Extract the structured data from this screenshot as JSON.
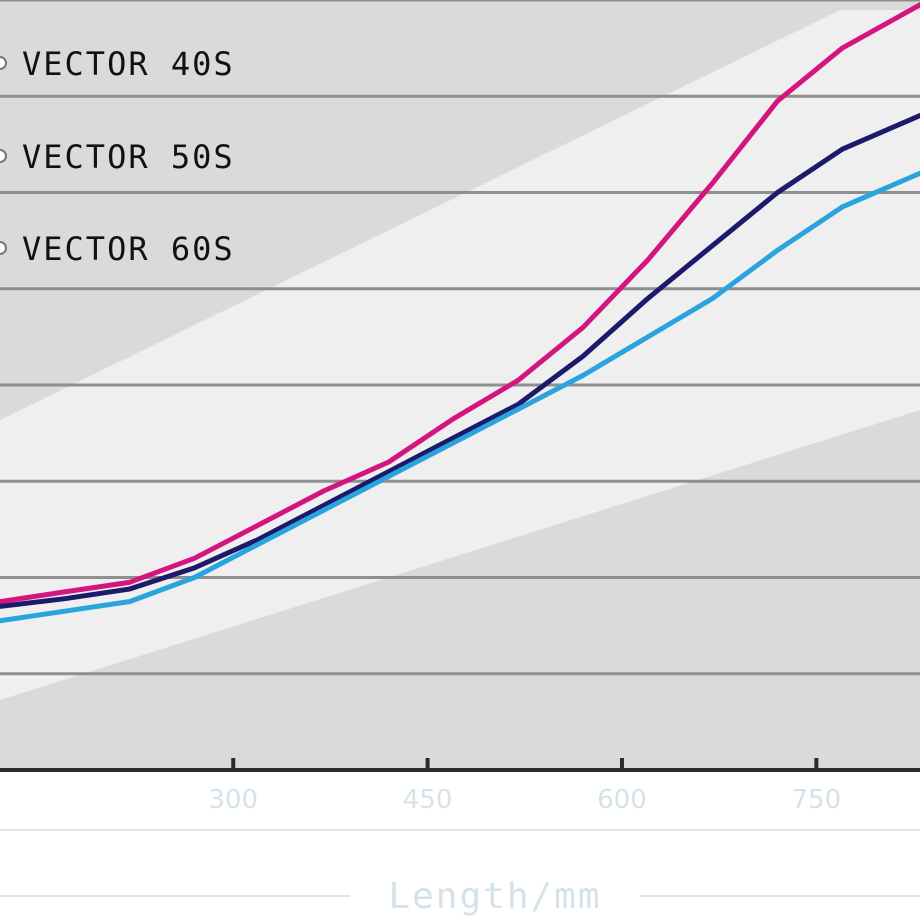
{
  "chart_data": {
    "type": "line",
    "title": "",
    "xlabel": "Length/mm",
    "ylabel": "",
    "xlim": [
      120,
      830
    ],
    "ylim": [
      0,
      8
    ],
    "x_ticks": [
      300,
      450,
      600,
      750
    ],
    "x_tick_labels": [
      "300",
      "450",
      "600",
      "750"
    ],
    "grid": true,
    "legend_placement": "top-left",
    "series": [
      {
        "name": "VECTOR 40S",
        "color": "#d4157f",
        "x": [
          120,
          170,
          220,
          270,
          320,
          370,
          420,
          470,
          520,
          570,
          620,
          670,
          720,
          770,
          830
        ],
        "y": [
          1.75,
          1.85,
          1.95,
          2.2,
          2.55,
          2.9,
          3.2,
          3.65,
          4.05,
          4.6,
          5.3,
          6.1,
          6.95,
          7.5,
          7.95
        ]
      },
      {
        "name": "VECTOR 50S",
        "color": "#1b1a6b",
        "x": [
          120,
          170,
          220,
          270,
          320,
          370,
          420,
          470,
          520,
          570,
          620,
          670,
          720,
          770,
          830
        ],
        "y": [
          1.7,
          1.78,
          1.88,
          2.1,
          2.4,
          2.75,
          3.1,
          3.45,
          3.8,
          4.3,
          4.9,
          5.45,
          6.0,
          6.45,
          6.8
        ]
      },
      {
        "name": "VECTOR 60S",
        "color": "#2aa4df",
        "x": [
          120,
          170,
          220,
          270,
          320,
          370,
          420,
          470,
          520,
          570,
          620,
          670,
          720,
          770,
          830
        ],
        "y": [
          1.55,
          1.65,
          1.75,
          2.0,
          2.35,
          2.7,
          3.05,
          3.4,
          3.75,
          4.1,
          4.5,
          4.9,
          5.4,
          5.85,
          6.2
        ]
      }
    ]
  },
  "colors": {
    "band_dark": "#dadada",
    "band_light": "#efefef",
    "gridline": "#8f8f8f",
    "axis_line": "#2b2b2b",
    "tick_text": "#d5e2ea"
  }
}
